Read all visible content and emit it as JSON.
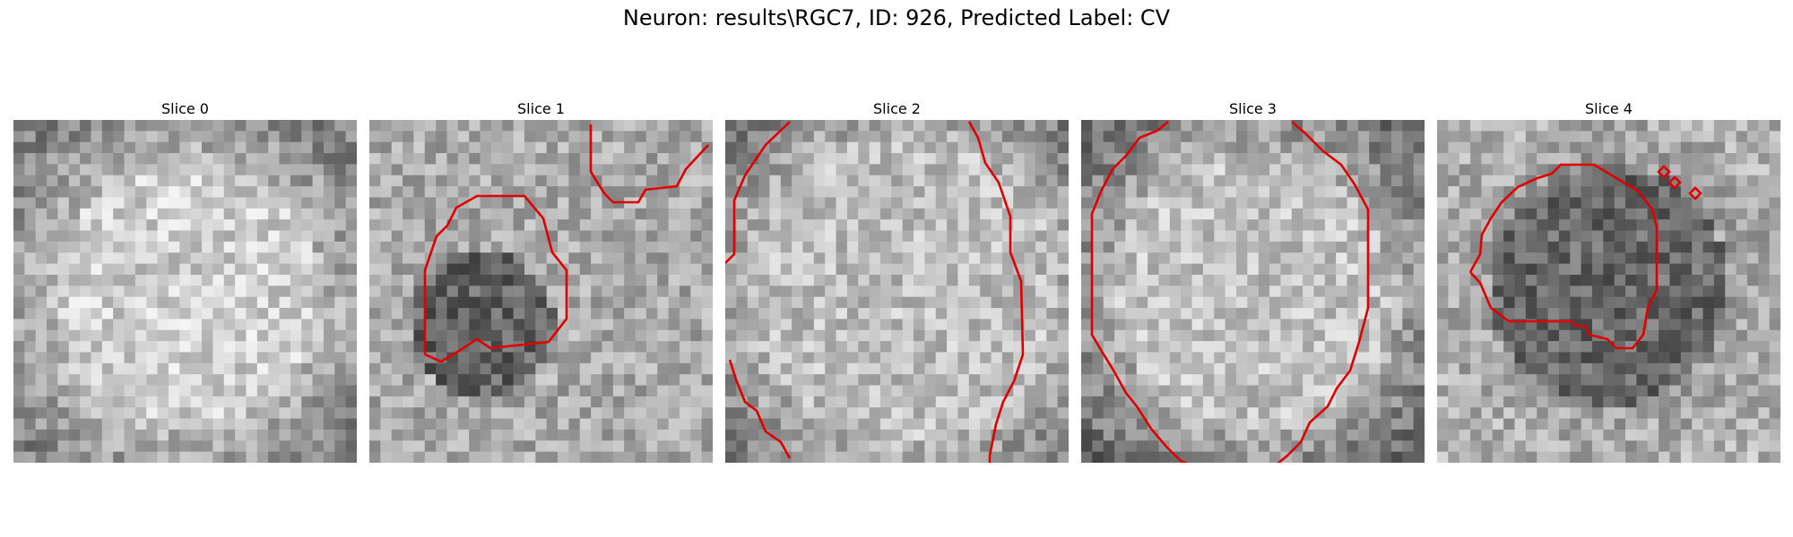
{
  "figure": {
    "suptitle": "Neuron: results\\RGC7, ID: 926, Predicted Label: CV"
  },
  "panels": [
    {
      "title": "Slice 0"
    },
    {
      "title": "Slice 1"
    },
    {
      "title": "Slice 2"
    },
    {
      "title": "Slice 3"
    },
    {
      "title": "Slice 4"
    }
  ],
  "colors": {
    "contour": "#e00000",
    "background": "#ffffff"
  }
}
